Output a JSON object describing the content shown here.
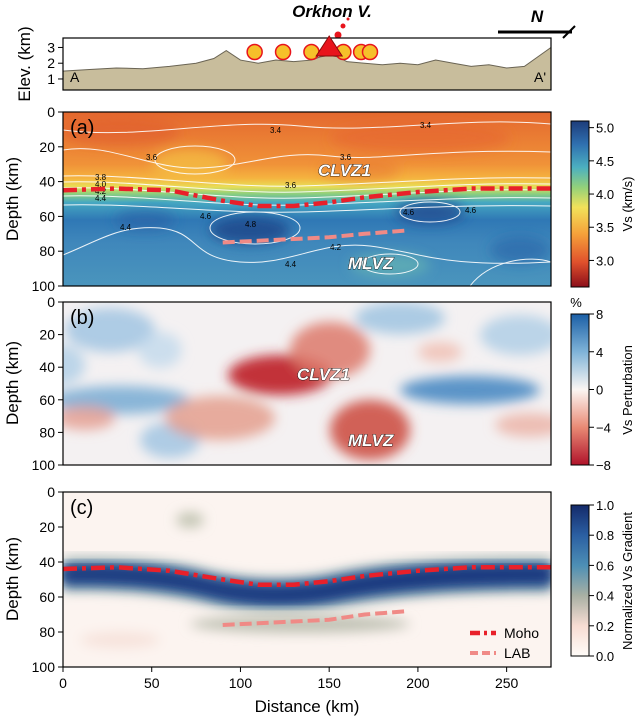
{
  "figure": {
    "volcano_label": "Orkhon V.",
    "north_label": "N",
    "xlabel": "Distance (km)",
    "x_ticks": [
      "0",
      "50",
      "100",
      "150",
      "200",
      "250"
    ]
  },
  "chart_data": [
    {
      "type": "area",
      "panel": "elevation",
      "ylabel": "Elev. (km)",
      "y_ticks": [
        "1",
        "2",
        "3"
      ],
      "xlim": [
        0,
        275
      ],
      "ylim": [
        0.3,
        3.6
      ],
      "profile_start_label": "A",
      "profile_end_label": "A'",
      "x": [
        0,
        15,
        30,
        45,
        60,
        75,
        85,
        92,
        100,
        110,
        120,
        130,
        140,
        145,
        150,
        155,
        160,
        170,
        180,
        190,
        200,
        210,
        220,
        230,
        240,
        250,
        260,
        270,
        275
      ],
      "elevation": [
        1.5,
        1.6,
        1.7,
        1.65,
        1.8,
        2.0,
        2.3,
        2.8,
        2.2,
        2.0,
        2.2,
        2.1,
        2.2,
        2.4,
        2.5,
        2.4,
        2.1,
        2.0,
        1.9,
        2.0,
        1.9,
        2.2,
        2.0,
        1.8,
        1.9,
        1.7,
        1.8,
        2.6,
        3.0
      ],
      "volcano_x": 150,
      "station_markers_x": [
        108,
        124,
        140,
        158,
        168,
        173
      ]
    },
    {
      "type": "heatmap",
      "panel": "(a)",
      "ylabel": "Depth (km)",
      "y_ticks": [
        "0",
        "20",
        "40",
        "60",
        "80",
        "100"
      ],
      "xlim": [
        0,
        275
      ],
      "ylim": [
        100,
        0
      ],
      "colorbar_label": "Vs (km/s)",
      "colorbar_ticks": [
        "5.0",
        "4.5",
        "4.0",
        "3.5",
        "3.0"
      ],
      "colorbar_range": [
        2.6,
        5.1
      ],
      "colormap": [
        "#8b0e1a",
        "#e0512c",
        "#f5a13a",
        "#f2e25a",
        "#93d17a",
        "#4cb0c0",
        "#2f70b0",
        "#1d3c7a"
      ],
      "contour_labels": [
        "3.4",
        "3.4",
        "3.6",
        "3.6",
        "3.6",
        "3.8",
        "4.0",
        "4.2",
        "4.4",
        "4.4",
        "4.6",
        "4.6",
        "4.6",
        "4.8",
        "4.2",
        "4.4"
      ],
      "annotations": [
        "CLVZ1",
        "MLVZ"
      ],
      "moho": {
        "x": [
          0,
          30,
          60,
          90,
          110,
          130,
          150,
          170,
          200,
          230,
          260,
          275
        ],
        "depth": [
          45,
          44,
          45,
          51,
          54,
          54,
          52,
          49,
          46,
          44,
          44,
          44
        ]
      },
      "lab": {
        "x": [
          90,
          110,
          130,
          150,
          170,
          195
        ],
        "depth": [
          75,
          74,
          73,
          72,
          70,
          68
        ]
      }
    },
    {
      "type": "heatmap",
      "panel": "(b)",
      "ylabel": "Depth (km)",
      "y_ticks": [
        "0",
        "20",
        "40",
        "60",
        "80",
        "100"
      ],
      "xlim": [
        0,
        275
      ],
      "ylim": [
        100,
        0
      ],
      "colorbar_label": "Vs Perturbation",
      "colorbar_unit": "%",
      "colorbar_ticks": [
        "8",
        "4",
        "0",
        "−4",
        "−8"
      ],
      "colorbar_range": [
        -8,
        8
      ],
      "annotations": [
        "CLVZ1",
        "MLVZ"
      ]
    },
    {
      "type": "heatmap",
      "panel": "(c)",
      "ylabel": "Depth (km)",
      "y_ticks": [
        "0",
        "20",
        "40",
        "60",
        "80",
        "100"
      ],
      "xlim": [
        0,
        275
      ],
      "ylim": [
        100,
        0
      ],
      "colorbar_label": "Normalized Vs Gradient",
      "colorbar_ticks": [
        "1.0",
        "0.8",
        "0.6",
        "0.4",
        "0.2",
        "0.0"
      ],
      "colorbar_range": [
        0,
        1
      ],
      "legend": {
        "placement": "bottom-right",
        "entries": [
          "Moho",
          "LAB"
        ]
      },
      "moho": {
        "x": [
          0,
          30,
          60,
          90,
          110,
          130,
          150,
          170,
          200,
          230,
          260,
          275
        ],
        "depth": [
          44,
          43,
          45,
          50,
          53,
          53,
          51,
          48,
          45,
          43,
          43,
          43
        ]
      },
      "lab": {
        "x": [
          90,
          110,
          130,
          150,
          170,
          195
        ],
        "depth": [
          76,
          75,
          74,
          73,
          70,
          68
        ]
      }
    }
  ]
}
